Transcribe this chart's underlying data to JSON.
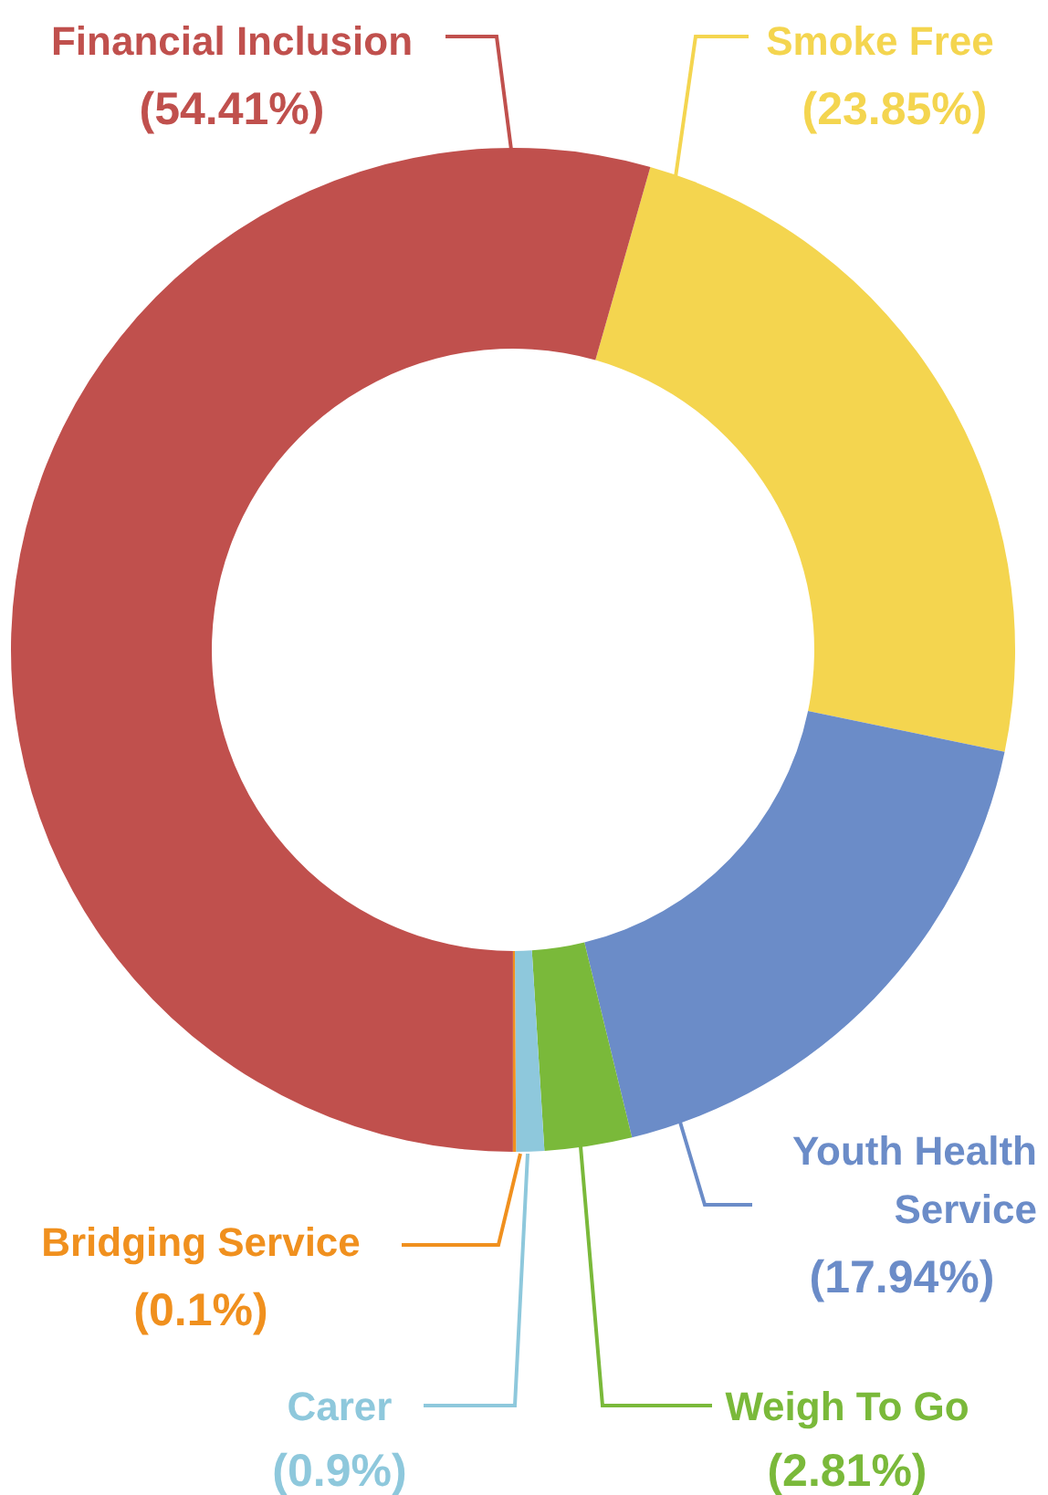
{
  "chart_data": {
    "type": "donut",
    "categories": [
      "Smoke Free",
      "Youth Health Service",
      "Weigh To Go",
      "Carer",
      "Bridging Service",
      "Financial Inclusion"
    ],
    "values": [
      23.85,
      17.94,
      2.81,
      0.9,
      0.1,
      54.41
    ],
    "colors": [
      "#f4d54f",
      "#6b8cc8",
      "#7ab93a",
      "#8ec8dc",
      "#f0901e",
      "#c0504d"
    ],
    "value_labels": [
      "(23.85%)",
      "(17.94%)",
      "(2.81%)",
      "(0.9%)",
      "(0.1%)",
      "(54.41%)"
    ]
  }
}
